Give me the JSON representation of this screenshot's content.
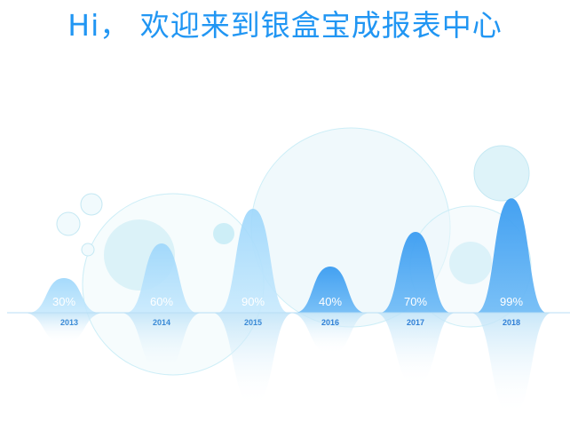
{
  "header": {
    "greeting": "Hi， 欢迎来到银盒宝成报表中心"
  },
  "chart_data": {
    "type": "area",
    "categories": [
      "2013",
      "2014",
      "2015",
      "2016",
      "2017",
      "2018"
    ],
    "values": [
      30,
      60,
      90,
      40,
      70,
      99
    ],
    "value_labels": [
      "30%",
      "60%",
      "90%",
      "40%",
      "70%",
      "99%"
    ],
    "ylim": [
      0,
      100
    ],
    "grid": false,
    "legend": "none",
    "colors": {
      "light": "#8ccdf8",
      "deep": "#2f94ee",
      "year_light": "#3a8ad6",
      "year_deep": "#2f7fd6",
      "bubble": "#cdeef7"
    }
  }
}
